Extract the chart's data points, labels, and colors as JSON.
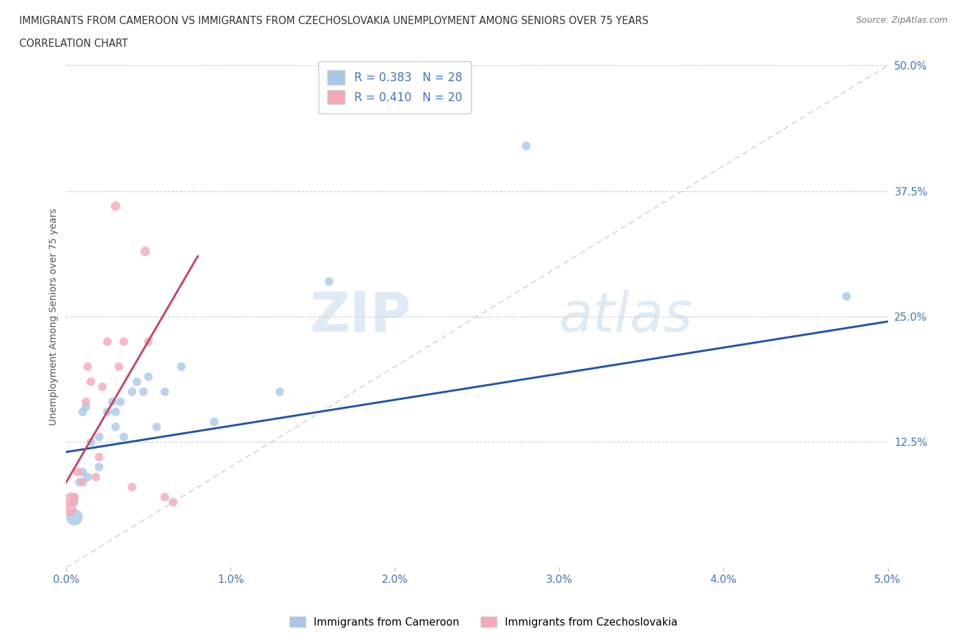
{
  "title_line1": "IMMIGRANTS FROM CAMEROON VS IMMIGRANTS FROM CZECHOSLOVAKIA UNEMPLOYMENT AMONG SENIORS OVER 75 YEARS",
  "title_line2": "CORRELATION CHART",
  "source": "Source: ZipAtlas.com",
  "ylabel": "Unemployment Among Seniors over 75 years",
  "legend_label1": "Immigrants from Cameroon",
  "legend_label2": "Immigrants from Czechoslovakia",
  "R1": 0.383,
  "N1": 28,
  "R2": 0.41,
  "N2": 20,
  "color1": "#a8c8e8",
  "color2": "#f4a8b8",
  "line_color1": "#2255aa",
  "line_color2": "#cc4466",
  "xlim": [
    0.0,
    0.05
  ],
  "ylim": [
    0.0,
    0.5
  ],
  "xticks": [
    0.0,
    0.01,
    0.02,
    0.03,
    0.04,
    0.05
  ],
  "yticks": [
    0.0,
    0.125,
    0.25,
    0.375,
    0.5
  ],
  "xtick_labels": [
    "0.0%",
    "1.0%",
    "2.0%",
    "3.0%",
    "4.0%",
    "5.0%"
  ],
  "ytick_labels": [
    "",
    "12.5%",
    "25.0%",
    "37.5%",
    "50.0%"
  ],
  "watermark_zip": "ZIP",
  "watermark_atlas": "atlas",
  "scatter1_x": [
    0.0005,
    0.0005,
    0.0008,
    0.001,
    0.001,
    0.0012,
    0.0013,
    0.0015,
    0.002,
    0.002,
    0.0025,
    0.0028,
    0.003,
    0.003,
    0.0033,
    0.0035,
    0.004,
    0.0043,
    0.0047,
    0.005,
    0.0055,
    0.006,
    0.007,
    0.009,
    0.013,
    0.016,
    0.028,
    0.0475
  ],
  "scatter1_y": [
    0.05,
    0.065,
    0.085,
    0.095,
    0.155,
    0.16,
    0.09,
    0.125,
    0.13,
    0.1,
    0.155,
    0.165,
    0.155,
    0.14,
    0.165,
    0.13,
    0.175,
    0.185,
    0.175,
    0.19,
    0.14,
    0.175,
    0.2,
    0.145,
    0.175,
    0.285,
    0.42,
    0.27
  ],
  "scatter1_size": [
    300,
    80,
    80,
    80,
    80,
    80,
    80,
    80,
    80,
    80,
    80,
    80,
    80,
    80,
    80,
    80,
    80,
    80,
    80,
    80,
    80,
    80,
    80,
    80,
    80,
    80,
    80,
    80
  ],
  "scatter2_x": [
    0.0002,
    0.0003,
    0.0005,
    0.0007,
    0.001,
    0.0012,
    0.0013,
    0.0015,
    0.0018,
    0.002,
    0.0022,
    0.0025,
    0.003,
    0.0032,
    0.0035,
    0.004,
    0.0048,
    0.005,
    0.006,
    0.0065
  ],
  "scatter2_y": [
    0.058,
    0.068,
    0.07,
    0.095,
    0.085,
    0.165,
    0.2,
    0.185,
    0.09,
    0.11,
    0.18,
    0.225,
    0.36,
    0.2,
    0.225,
    0.08,
    0.315,
    0.225,
    0.07,
    0.065
  ],
  "scatter2_size": [
    200,
    200,
    80,
    80,
    80,
    80,
    80,
    80,
    80,
    80,
    80,
    80,
    100,
    80,
    80,
    80,
    100,
    80,
    80,
    80
  ],
  "trend1_x": [
    0.0,
    0.05
  ],
  "trend1_y": [
    0.115,
    0.245
  ],
  "trend2_x": [
    0.0,
    0.008
  ],
  "trend2_y": [
    0.085,
    0.31
  ]
}
